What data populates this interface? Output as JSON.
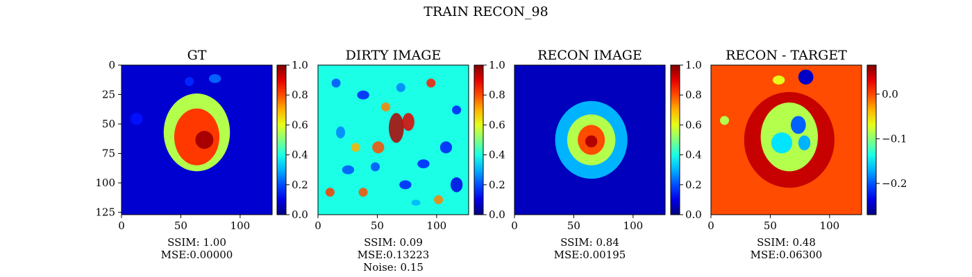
{
  "figure": {
    "title": "TRAIN RECON_98"
  },
  "chart_data": [
    {
      "type": "heatmap",
      "title": "GT",
      "colormap": "jet",
      "xlim": [
        0,
        127
      ],
      "ylim": [
        127,
        0
      ],
      "xticks": [
        0,
        50,
        100
      ],
      "yticks": [
        0,
        25,
        50,
        75,
        100,
        125
      ],
      "colorbar": {
        "range": [
          0.0,
          1.0
        ],
        "ticks": [
          "0.0",
          "0.2",
          "0.4",
          "0.6",
          "0.8",
          "1.0"
        ],
        "tick_values": [
          0.0,
          0.2,
          0.4,
          0.6,
          0.8,
          1.0
        ]
      },
      "metrics": [
        "SSIM: 1.00",
        "MSE:0.00000"
      ]
    },
    {
      "type": "heatmap",
      "title": "DIRTY IMAGE",
      "colormap": "jet",
      "xlim": [
        0,
        127
      ],
      "ylim": [
        127,
        0
      ],
      "xticks": [
        0,
        50,
        100
      ],
      "yticks": [],
      "colorbar": {
        "range": [
          0.0,
          1.0
        ],
        "ticks": [
          "0.0",
          "0.2",
          "0.4",
          "0.6",
          "0.8",
          "1.0"
        ],
        "tick_values": [
          0.0,
          0.2,
          0.4,
          0.6,
          0.8,
          1.0
        ]
      },
      "metrics": [
        "SSIM: 0.09",
        "MSE:0.13223",
        "Noise: 0.15"
      ]
    },
    {
      "type": "heatmap",
      "title": "RECON IMAGE",
      "colormap": "jet",
      "xlim": [
        0,
        127
      ],
      "ylim": [
        127,
        0
      ],
      "xticks": [
        0,
        50,
        100
      ],
      "yticks": [],
      "colorbar": {
        "range": [
          0.0,
          1.0
        ],
        "ticks": [
          "0.0",
          "0.2",
          "0.4",
          "0.6",
          "0.8",
          "1.0"
        ],
        "tick_values": [
          0.0,
          0.2,
          0.4,
          0.6,
          0.8,
          1.0
        ]
      },
      "metrics": [
        "SSIM: 0.84",
        "MSE:0.00195"
      ]
    },
    {
      "type": "heatmap",
      "title": "RECON - TARGET",
      "colormap": "jet",
      "xlim": [
        0,
        127
      ],
      "ylim": [
        127,
        0
      ],
      "xticks": [
        0,
        50,
        100
      ],
      "yticks": [],
      "colorbar": {
        "range": [
          -0.27,
          0.065
        ],
        "ticks": [
          "0.0",
          "−0.1",
          "−0.2"
        ],
        "tick_values": [
          0.0,
          -0.1,
          -0.2
        ]
      },
      "metrics": [
        "SSIM: 0.48",
        "MSE:0.06300"
      ]
    }
  ]
}
